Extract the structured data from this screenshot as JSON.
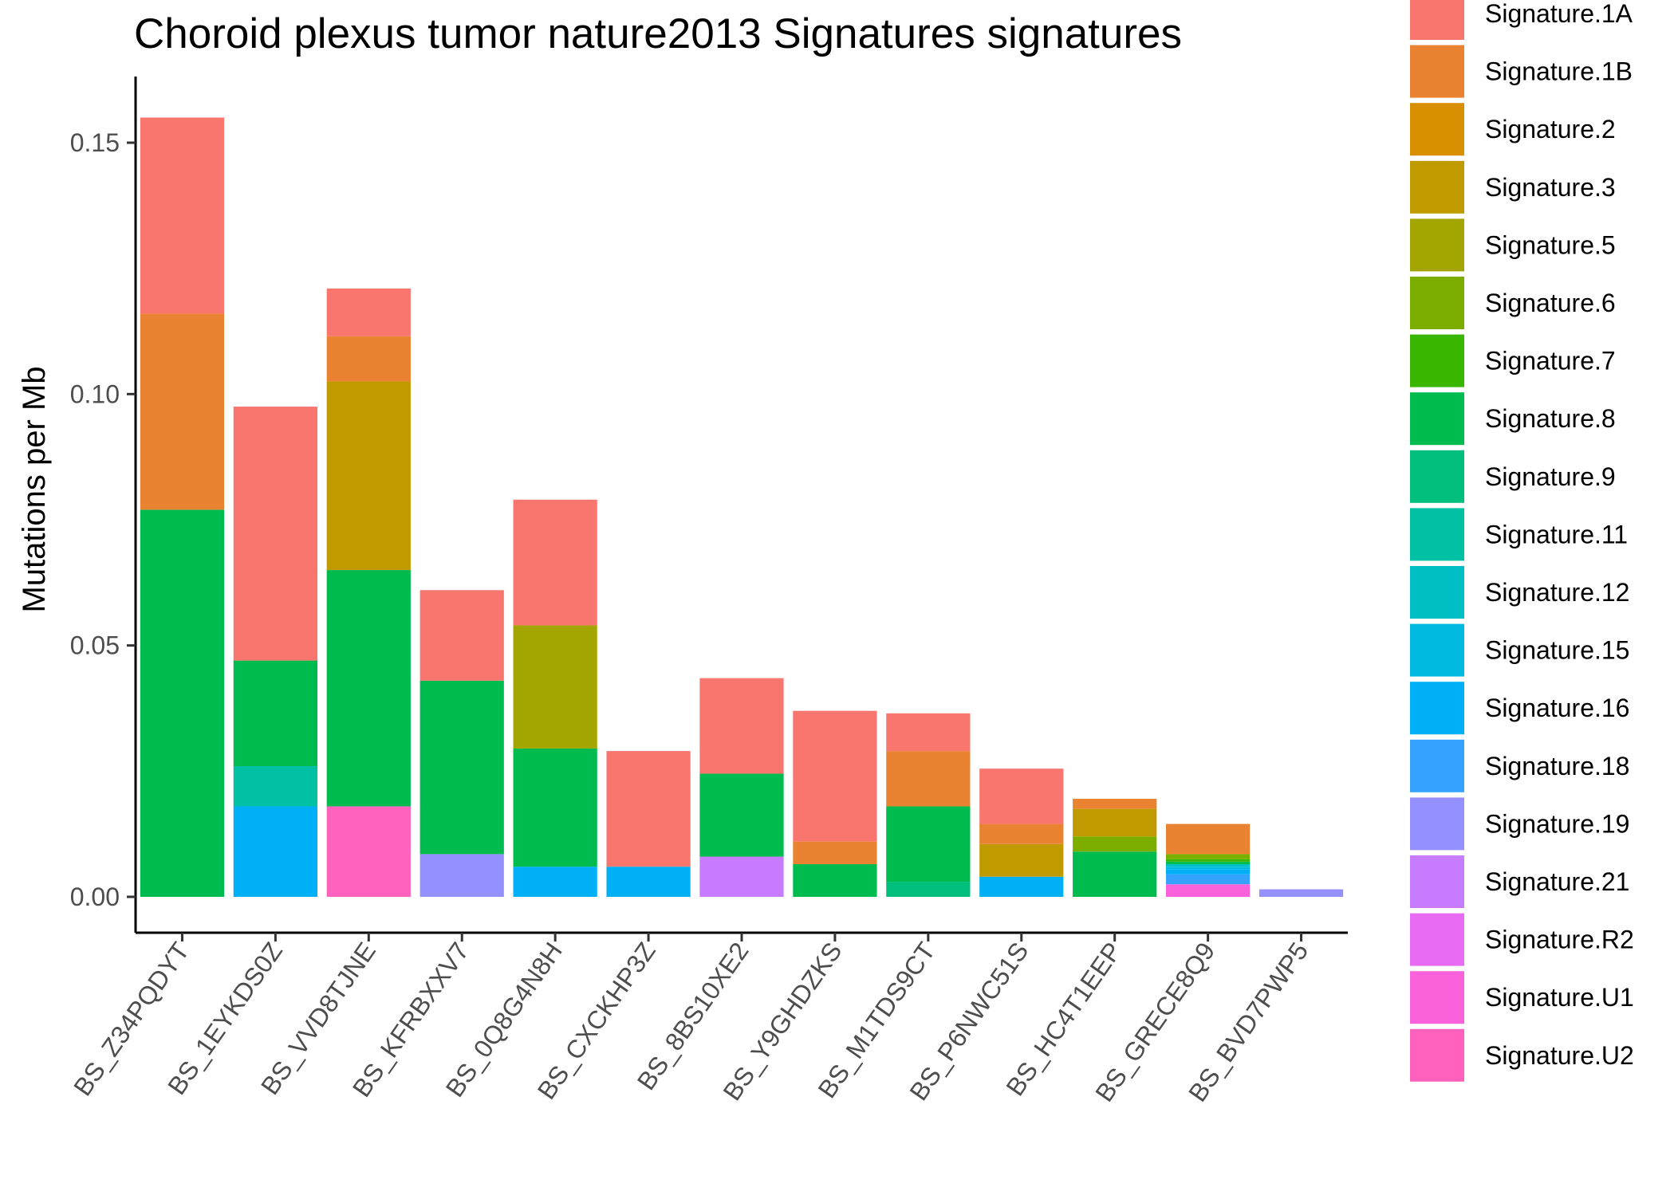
{
  "chart_data": {
    "type": "bar",
    "stacked": true,
    "title": "Choroid plexus tumor nature2013 Signatures signatures",
    "xlabel": "",
    "ylabel": "Mutations per Mb",
    "ylim": [
      -0.008,
      0.16
    ],
    "yticks": [
      0.0,
      0.05,
      0.1,
      0.15
    ],
    "ytick_labels": [
      "0.00",
      "0.05",
      "0.10",
      "0.15"
    ],
    "grid": false,
    "legend_position": "right",
    "categories": [
      "BS_Z34PQDYT",
      "BS_1EYKDS0Z",
      "BS_VVD8TJNE",
      "BS_KFRBXXV7",
      "BS_0Q8G4N8H",
      "BS_CXCKHP3Z",
      "BS_8BS10XE2",
      "BS_Y9GHDZKS",
      "BS_M1TDS9CT",
      "BS_P6NWC51S",
      "BS_HC4T1EEP",
      "BS_GRECE8Q9",
      "BS_BVD7PWP5"
    ],
    "series": [
      {
        "name": "Signature.1A",
        "color": "#F8766D",
        "values": [
          0.039,
          0.0505,
          0.0095,
          0.018,
          0.025,
          0.023,
          0.019,
          0.026,
          0.0075,
          0.011,
          0,
          0,
          0
        ]
      },
      {
        "name": "Signature.1B",
        "color": "#EA8331",
        "values": [
          0.039,
          0,
          0.009,
          0,
          0,
          0,
          0,
          0.0045,
          0.011,
          0.004,
          0.002,
          0.006,
          0
        ]
      },
      {
        "name": "Signature.2",
        "color": "#D89000",
        "values": [
          0,
          0,
          0,
          0,
          0,
          0,
          0,
          0,
          0,
          0,
          0,
          0,
          0
        ]
      },
      {
        "name": "Signature.3",
        "color": "#C09B00",
        "values": [
          0,
          0,
          0.0375,
          0,
          0,
          0,
          0,
          0,
          0,
          0.0065,
          0.0055,
          0,
          0
        ]
      },
      {
        "name": "Signature.5",
        "color": "#A3A500",
        "values": [
          0,
          0,
          0,
          0,
          0.0245,
          0,
          0,
          0,
          0,
          0,
          0,
          0,
          0
        ]
      },
      {
        "name": "Signature.6",
        "color": "#7CAE00",
        "values": [
          0,
          0,
          0,
          0,
          0,
          0,
          0,
          0,
          0,
          0,
          0.003,
          0.001,
          0
        ]
      },
      {
        "name": "Signature.7",
        "color": "#39B600",
        "values": [
          0,
          0,
          0,
          0,
          0,
          0,
          0,
          0,
          0,
          0,
          0,
          0.0005,
          0
        ]
      },
      {
        "name": "Signature.8",
        "color": "#00BB4E",
        "values": [
          0.077,
          0.021,
          0.047,
          0.0345,
          0.0235,
          0,
          0.0165,
          0.0065,
          0.015,
          0,
          0.009,
          0.0005,
          0
        ]
      },
      {
        "name": "Signature.9",
        "color": "#00BF7D",
        "values": [
          0,
          0,
          0,
          0,
          0,
          0,
          0,
          0,
          0.003,
          0,
          0,
          0,
          0
        ]
      },
      {
        "name": "Signature.11",
        "color": "#00C1A3",
        "values": [
          0,
          0.008,
          0,
          0,
          0,
          0,
          0,
          0,
          0,
          0,
          0,
          0,
          0
        ]
      },
      {
        "name": "Signature.12",
        "color": "#00BFC4",
        "values": [
          0,
          0,
          0,
          0,
          0,
          0,
          0,
          0,
          0,
          0,
          0,
          0.0005,
          0
        ]
      },
      {
        "name": "Signature.15",
        "color": "#00BAE0",
        "values": [
          0,
          0,
          0,
          0,
          0,
          0,
          0,
          0,
          0,
          0,
          0,
          0.0005,
          0
        ]
      },
      {
        "name": "Signature.16",
        "color": "#00B0F6",
        "values": [
          0,
          0.018,
          0,
          0,
          0.006,
          0.006,
          0,
          0,
          0,
          0.004,
          0,
          0.001,
          0
        ]
      },
      {
        "name": "Signature.18",
        "color": "#35A2FF",
        "values": [
          0,
          0,
          0,
          0,
          0,
          0,
          0,
          0,
          0,
          0,
          0,
          0.002,
          0
        ]
      },
      {
        "name": "Signature.19",
        "color": "#9590FF",
        "values": [
          0,
          0,
          0,
          0.0085,
          0,
          0,
          0,
          0,
          0,
          0,
          0,
          0,
          0.0015
        ]
      },
      {
        "name": "Signature.21",
        "color": "#C77CFF",
        "values": [
          0,
          0,
          0,
          0,
          0,
          0,
          0.008,
          0,
          0,
          0,
          0,
          0,
          0
        ]
      },
      {
        "name": "Signature.R2",
        "color": "#E76BF3",
        "values": [
          0,
          0,
          0,
          0,
          0,
          0,
          0,
          0,
          0,
          0,
          0,
          0,
          0
        ]
      },
      {
        "name": "Signature.U1",
        "color": "#FA62DB",
        "values": [
          0,
          0,
          0,
          0,
          0,
          0,
          0,
          0,
          0,
          0,
          0,
          0.0025,
          0
        ]
      },
      {
        "name": "Signature.U2",
        "color": "#FF62BC",
        "values": [
          0,
          0,
          0.018,
          0,
          0,
          0,
          0,
          0,
          0,
          0,
          0,
          0,
          0
        ]
      }
    ]
  }
}
